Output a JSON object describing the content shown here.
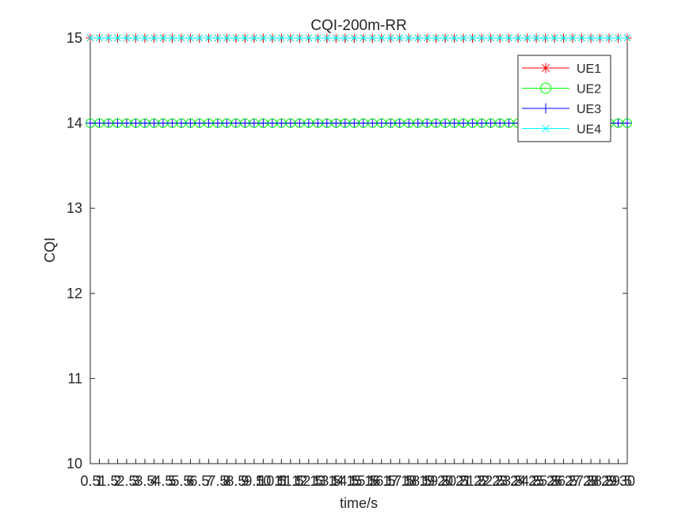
{
  "chart_data": {
    "type": "line",
    "title": "CQI-200m-RR",
    "xlabel": "time/s",
    "ylabel": "CQI",
    "xlim": [
      0.5,
      30
    ],
    "ylim": [
      10,
      15
    ],
    "x_step": 0.5,
    "x_tick_labels": [
      "0.5",
      "1",
      "1.5",
      "2",
      "2.5",
      "3",
      "3.5",
      "4",
      "4.5",
      "5",
      "5.5",
      "6",
      "6.5",
      "7",
      "7.5",
      "8",
      "8.5",
      "9",
      "9.5",
      "10",
      "10.5",
      "11",
      "11.5",
      "12",
      "12.5",
      "13",
      "13.5",
      "14",
      "14.5",
      "15",
      "15.5",
      "16",
      "16.5",
      "17",
      "17.5",
      "18",
      "18.5",
      "19",
      "19.5",
      "20",
      "20.5",
      "21",
      "21.5",
      "22",
      "22.5",
      "23",
      "23.5",
      "24",
      "24.5",
      "25",
      "25.5",
      "26",
      "26.5",
      "27",
      "27.5",
      "28",
      "28.5",
      "29",
      "29.5",
      "30"
    ],
    "y_tick_labels": [
      "10",
      "11",
      "12",
      "13",
      "14",
      "15"
    ],
    "grid": false,
    "legend_position": "top-right",
    "series": [
      {
        "name": "UE1",
        "color": "#ff0000",
        "marker": "asterisk",
        "constant_value": 15
      },
      {
        "name": "UE2",
        "color": "#00ff00",
        "marker": "circle",
        "constant_value": 14
      },
      {
        "name": "UE3",
        "color": "#0000ff",
        "marker": "plus",
        "constant_value": 14
      },
      {
        "name": "UE4",
        "color": "#00ffff",
        "marker": "x",
        "constant_value": 15
      }
    ]
  }
}
